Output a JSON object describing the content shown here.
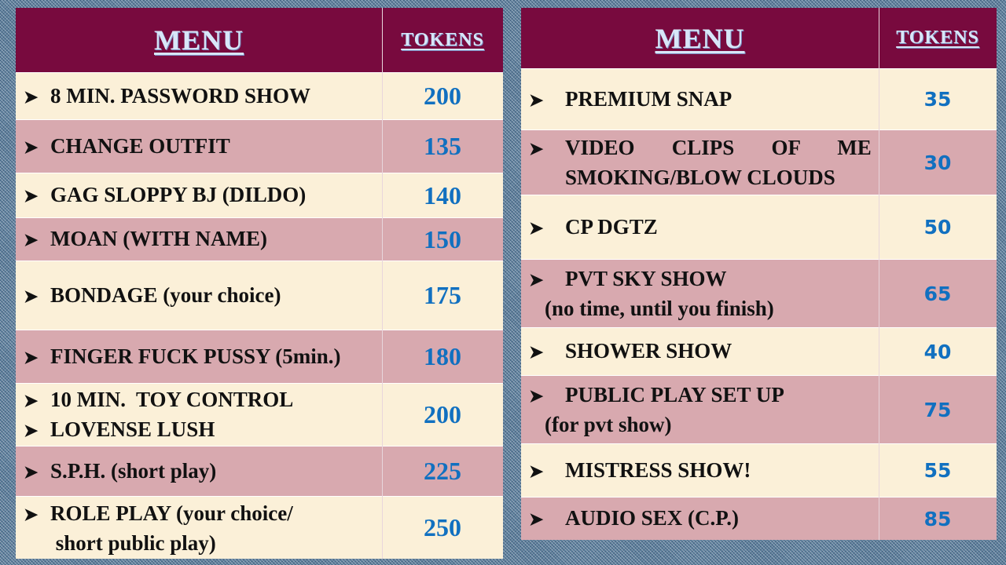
{
  "colors": {
    "header": "#780a3e",
    "row_cream": "#fbf0d8",
    "row_pink": "#d8a9af",
    "token_text": "#1170c0",
    "header_text": "#d8e6f8"
  },
  "bullet_icon": "arrowhead-bullet",
  "left": {
    "header": {
      "menu": "MENU",
      "tokens": "TOKENS"
    },
    "rows": [
      {
        "lines": [
          {
            "b": true,
            "t": "8 MIN. PASSWORD SHOW"
          }
        ],
        "tokens": "200"
      },
      {
        "lines": [
          {
            "b": true,
            "t": "CHANGE OUTFIT"
          }
        ],
        "tokens": "135"
      },
      {
        "lines": [
          {
            "b": true,
            "t": "GAG SLOPPY BJ (DILDO)"
          }
        ],
        "tokens": "140"
      },
      {
        "lines": [
          {
            "b": true,
            "t": "MOAN (WITH NAME)"
          }
        ],
        "tokens": "150"
      },
      {
        "lines": [
          {
            "b": true,
            "t": "BONDAGE (your choice)"
          }
        ],
        "tokens": "175"
      },
      {
        "lines": [
          {
            "b": true,
            "t": "FINGER FUCK PUSSY (5min.)"
          }
        ],
        "tokens": "180"
      },
      {
        "lines": [
          {
            "b": true,
            "t": "10 MIN.  TOY CONTROL"
          },
          {
            "b": true,
            "t": "LOVENSE LUSH"
          }
        ],
        "tokens": "200"
      },
      {
        "lines": [
          {
            "b": true,
            "t": "S.P.H. (short play)"
          }
        ],
        "tokens": "225"
      },
      {
        "lines": [
          {
            "b": true,
            "t": "ROLE PLAY (your choice/"
          },
          {
            "b": false,
            "t": " short public play)"
          }
        ],
        "tokens": "250"
      }
    ]
  },
  "right": {
    "header": {
      "menu": "MENU",
      "tokens": "TOKENS"
    },
    "rows": [
      {
        "lines": [
          {
            "b": true,
            "t": "PREMIUM SNAP"
          }
        ],
        "tokens": "35"
      },
      {
        "lines": [
          {
            "b": true,
            "t": "VIDEO       CLIPS       OF       ME"
          },
          {
            "b": false,
            "t": "SMOKING/BLOW CLOUDS"
          }
        ],
        "tokens": "30"
      },
      {
        "lines": [
          {
            "b": true,
            "t": "CP DGTZ"
          }
        ],
        "tokens": "50"
      },
      {
        "lines": [
          {
            "b": true,
            "t": "PVT SKY SHOW"
          },
          {
            "b": false,
            "t": "(no time, until you finish)",
            "indent": true
          }
        ],
        "tokens": "65"
      },
      {
        "lines": [
          {
            "b": true,
            "t": "SHOWER SHOW"
          }
        ],
        "tokens": "40"
      },
      {
        "lines": [
          {
            "b": true,
            "t": "PUBLIC PLAY SET UP"
          },
          {
            "b": false,
            "t": "(for pvt show)",
            "indent": true
          }
        ],
        "tokens": "75"
      },
      {
        "lines": [
          {
            "b": true,
            "t": "MISTRESS SHOW!"
          }
        ],
        "tokens": "55"
      },
      {
        "lines": [
          {
            "b": true,
            "t": "AUDIO SEX (C.P.)"
          }
        ],
        "tokens": "85"
      }
    ]
  }
}
